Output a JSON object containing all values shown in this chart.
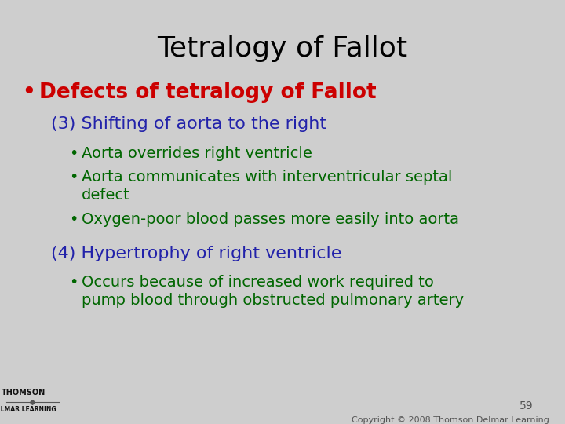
{
  "title": "Tetralogy of Fallot",
  "title_color": "#000000",
  "title_fontsize": 26,
  "bg_color": "#cecece",
  "bullet1_text": "Defects of tetralogy of Fallot",
  "bullet1_color": "#cc0000",
  "bullet1_fontsize": 19,
  "sub1_header": "(3) Shifting of aorta to the right",
  "sub1_color": "#2222aa",
  "sub1_fontsize": 16,
  "sub1_bullet_color": "#006600",
  "sub1_bullet_fontsize": 14,
  "sub2_header": "(4) Hypertrophy of right ventricle",
  "sub2_color": "#2222aa",
  "sub2_fontsize": 16,
  "sub2_bullet_color": "#006600",
  "sub2_bullet_fontsize": 14,
  "page_number": "59",
  "copyright_text": "Copyright © 2008 Thomson Delmar Learning",
  "footer_color": "#555555",
  "footer_fontsize": 8,
  "thomson_color": "#111111",
  "delmar_color": "#111111"
}
